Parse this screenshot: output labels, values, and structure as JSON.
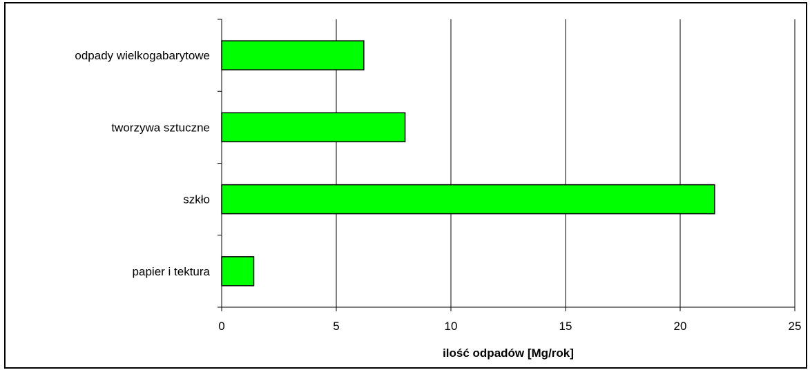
{
  "chart_data": {
    "type": "bar",
    "orientation": "horizontal",
    "categories": [
      "odpady wielkogabarytowe",
      "tworzywa sztuczne",
      "szkło",
      "papier i tektura"
    ],
    "values": [
      6.2,
      8.0,
      21.5,
      1.4
    ],
    "xlabel": "ilość odpadów [Mg/rok]",
    "ylabel": "",
    "xlim": [
      0,
      25
    ],
    "xticks": [
      "0",
      "5",
      "10",
      "15",
      "20",
      "25"
    ],
    "grid": "vertical",
    "legend": "none",
    "colors": {
      "bar": "#00ff00",
      "bar_edge": "#000000",
      "grid": "#000000",
      "axis": "#000000"
    }
  }
}
